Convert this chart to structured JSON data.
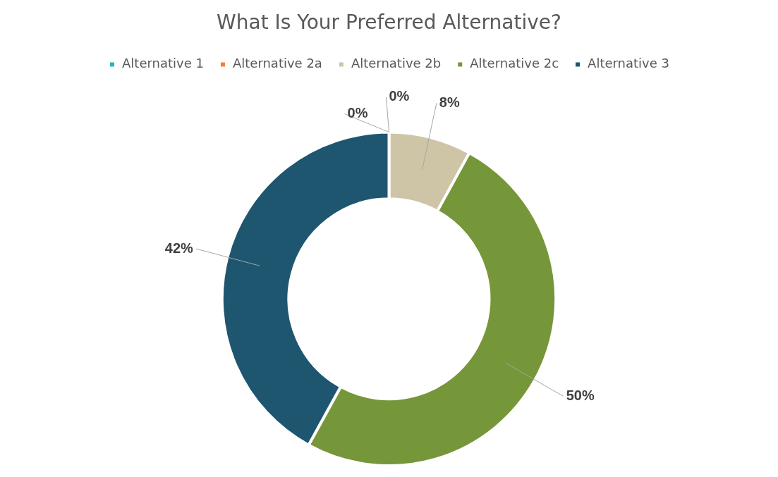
{
  "chart_data": {
    "type": "donut",
    "title": "What Is Your Preferred Alternative?",
    "categories": [
      "Alternative 1",
      "Alternative 2a",
      "Alternative 2b",
      "Alternative 2c",
      "Alternative 3"
    ],
    "values": [
      0,
      0,
      8,
      50,
      42
    ],
    "colors": [
      "#2ab3bb",
      "#f0813a",
      "#cdc5a6",
      "#76963a",
      "#1e5670"
    ],
    "value_labels": [
      "0%",
      "0%",
      "8%",
      "50%",
      "42%"
    ],
    "legend": "top"
  }
}
